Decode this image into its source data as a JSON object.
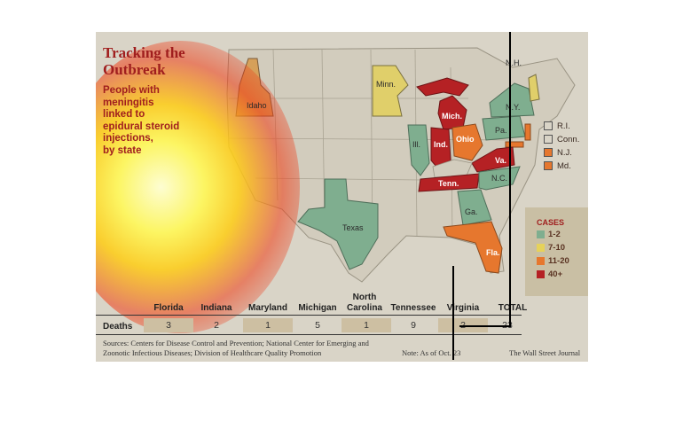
{
  "title": "Tracking the\nOutbreak",
  "subtitle": "People with\nmeningitis\nlinked to\nepidural steroid\ninjections,\nby state",
  "legend": {
    "title": "CASES",
    "items": [
      {
        "label": "1-2",
        "color": "#7fae8f"
      },
      {
        "label": "7-10",
        "color": "#e6d25a"
      },
      {
        "label": "11-20",
        "color": "#e6772e"
      },
      {
        "label": "40+",
        "color": "#b52124"
      }
    ]
  },
  "northeast_labels": [
    {
      "label": "R.I.",
      "color": "#d9d4c7"
    },
    {
      "label": "Conn.",
      "color": "#d9d4c7"
    },
    {
      "label": "N.J.",
      "color": "#e6772e"
    },
    {
      "label": "Md.",
      "color": "#e6772e"
    }
  ],
  "states": [
    {
      "label": "Idaho",
      "category": "7-10"
    },
    {
      "label": "Minn.",
      "category": "7-10"
    },
    {
      "label": "Mich.",
      "category": "40+"
    },
    {
      "label": "Ind.",
      "category": "40+"
    },
    {
      "label": "Ohio",
      "category": "11-20"
    },
    {
      "label": "Ill.",
      "category": "1-2"
    },
    {
      "label": "N.Y.",
      "category": "1-2"
    },
    {
      "label": "Pa.",
      "category": "1-2"
    },
    {
      "label": "N.H.",
      "category": "7-10"
    },
    {
      "label": "Va.",
      "category": "40+"
    },
    {
      "label": "Tenn.",
      "category": "40+"
    },
    {
      "label": "N.C.",
      "category": "1-2"
    },
    {
      "label": "Ga.",
      "category": "1-2"
    },
    {
      "label": "Fla.",
      "category": "11-20"
    },
    {
      "label": "Texas",
      "category": "1-2"
    }
  ],
  "table": {
    "row_label": "Deaths",
    "columns": [
      "Florida",
      "Indiana",
      "Maryland",
      "Michigan",
      "North Carolina",
      "Tennessee",
      "Virginia",
      "TOTAL"
    ],
    "values": [
      "3",
      "2",
      "1",
      "5",
      "1",
      "9",
      "2",
      "23"
    ]
  },
  "sources": "Sources: Centers for Disease Control and Prevention; National Center for Emerging and Zoonotic Infectious Diseases; Division of Healthcare Quality Promotion",
  "note": "Note: As of Oct. 23",
  "credit": "The Wall Street Journal"
}
